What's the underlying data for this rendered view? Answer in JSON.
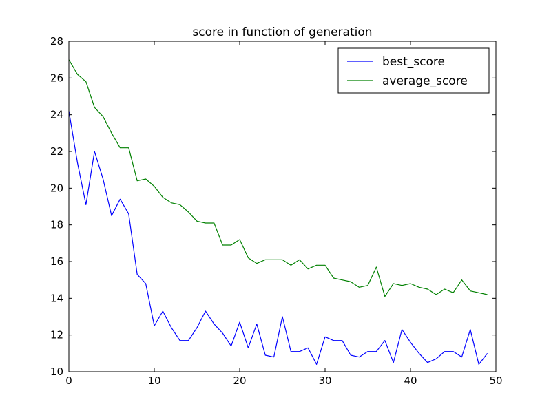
{
  "chart_data": {
    "type": "line",
    "title": "score in function of generation",
    "xlabel": "",
    "ylabel": "",
    "xlim": [
      0,
      50
    ],
    "ylim": [
      10,
      28
    ],
    "xticks": [
      "0",
      "10",
      "20",
      "30",
      "40",
      "50"
    ],
    "yticks": [
      "10",
      "12",
      "14",
      "16",
      "18",
      "20",
      "22",
      "24",
      "26",
      "28"
    ],
    "grid": false,
    "legend_position": "top-right",
    "x": [
      0,
      1,
      2,
      3,
      4,
      5,
      6,
      7,
      8,
      9,
      10,
      11,
      12,
      13,
      14,
      15,
      16,
      17,
      18,
      19,
      20,
      21,
      22,
      23,
      24,
      25,
      26,
      27,
      28,
      29,
      30,
      31,
      32,
      33,
      34,
      35,
      36,
      37,
      38,
      39,
      40,
      41,
      42,
      43,
      44,
      45,
      46,
      47,
      48,
      49
    ],
    "series": [
      {
        "name": "best_score",
        "color": "#0000ff",
        "values": [
          24.2,
          21.4,
          19.1,
          22.0,
          20.5,
          18.5,
          19.4,
          18.6,
          15.3,
          14.8,
          12.5,
          13.3,
          12.4,
          11.7,
          11.7,
          12.4,
          13.3,
          12.6,
          12.1,
          11.4,
          12.7,
          11.3,
          12.6,
          10.9,
          10.8,
          13.0,
          11.1,
          11.1,
          11.3,
          10.4,
          11.9,
          11.7,
          11.7,
          10.9,
          10.8,
          11.1,
          11.1,
          11.7,
          10.5,
          12.3,
          11.6,
          11.0,
          10.5,
          10.7,
          11.1,
          11.1,
          10.8,
          12.3,
          10.4,
          11.0
        ]
      },
      {
        "name": "average_score",
        "color": "#008000",
        "values": [
          27.0,
          26.2,
          25.8,
          24.4,
          23.9,
          23.0,
          22.2,
          22.2,
          20.4,
          20.5,
          20.1,
          19.5,
          19.2,
          19.1,
          18.7,
          18.2,
          18.1,
          18.1,
          16.9,
          16.9,
          17.2,
          16.2,
          15.9,
          16.1,
          16.1,
          16.1,
          15.8,
          16.1,
          15.6,
          15.8,
          15.8,
          15.1,
          15.0,
          14.9,
          14.6,
          14.7,
          15.7,
          14.1,
          14.8,
          14.7,
          14.8,
          14.6,
          14.5,
          14.2,
          14.5,
          14.3,
          15.0,
          14.4,
          14.3,
          14.2
        ]
      }
    ]
  }
}
